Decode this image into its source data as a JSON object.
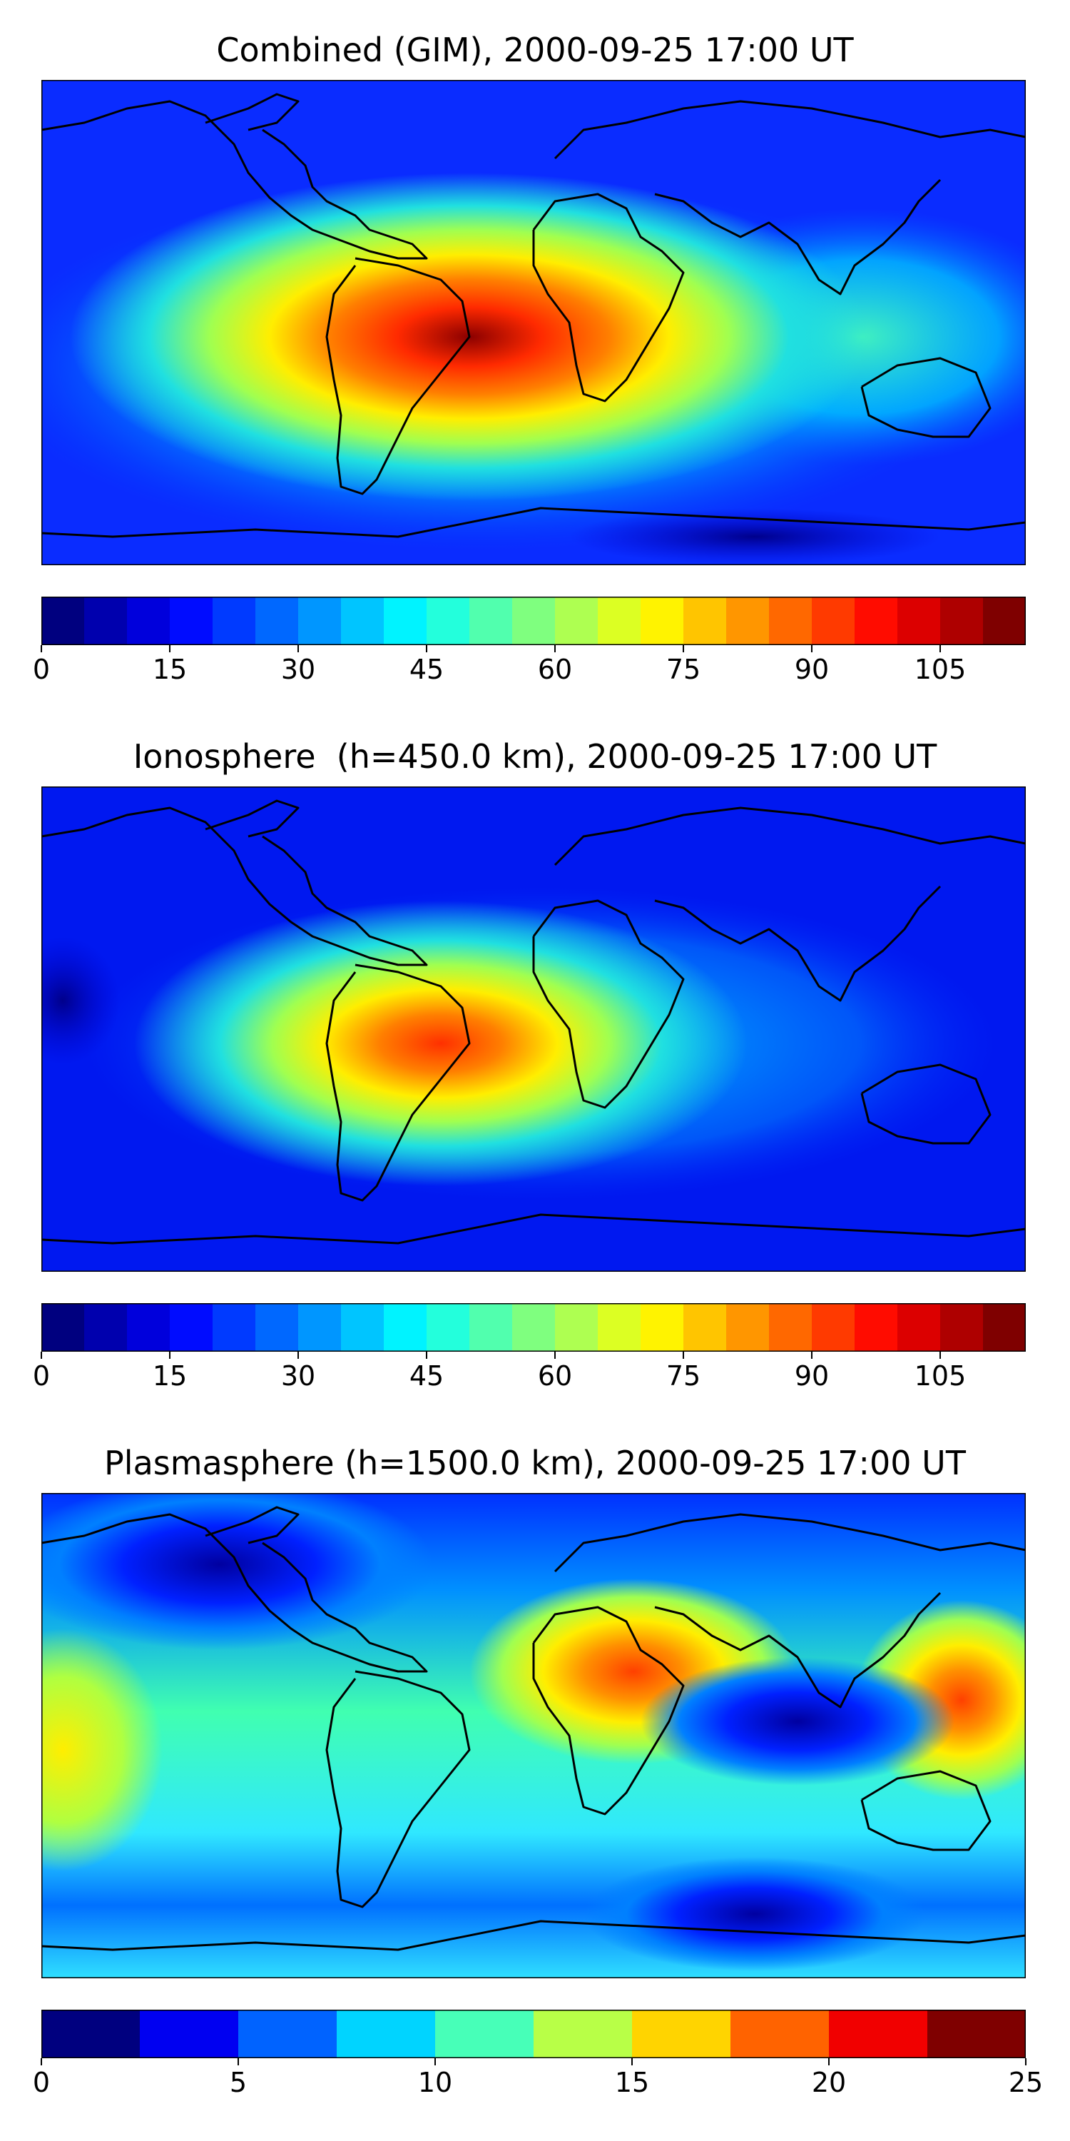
{
  "panels": [
    {
      "title": "Combined (GIM), 2000-09-25 17:00 UT",
      "colorbar": {
        "min": 0,
        "max": 115,
        "levels": 23,
        "ticks": [
          0,
          15,
          30,
          45,
          60,
          75,
          90,
          105
        ],
        "tick_labels": [
          "0",
          "15",
          "30",
          "45",
          "60",
          "75",
          "90",
          "105"
        ]
      }
    },
    {
      "title": "Ionosphere  (h=450.0 km), 2000-09-25 17:00 UT",
      "colorbar": {
        "min": 0,
        "max": 115,
        "levels": 23,
        "ticks": [
          0,
          15,
          30,
          45,
          60,
          75,
          90,
          105
        ],
        "tick_labels": [
          "0",
          "15",
          "30",
          "45",
          "60",
          "75",
          "90",
          "105"
        ]
      }
    },
    {
      "title": "Plasmasphere (h=1500.0 km), 2000-09-25 17:00 UT",
      "colorbar": {
        "min": 0,
        "max": 25,
        "levels": 10,
        "ticks": [
          0,
          5,
          10,
          15,
          20,
          25
        ],
        "tick_labels": [
          "0",
          "5",
          "10",
          "15",
          "20",
          "25"
        ]
      }
    }
  ],
  "colormap": "jet",
  "projection": "plate-carree",
  "colors": {
    "jet_stops": [
      "#00007f",
      "#0000ff",
      "#007fff",
      "#00ffff",
      "#7fff7f",
      "#ffff00",
      "#ff7f00",
      "#ff0000",
      "#7f0000"
    ],
    "coastline": "#000000"
  }
}
